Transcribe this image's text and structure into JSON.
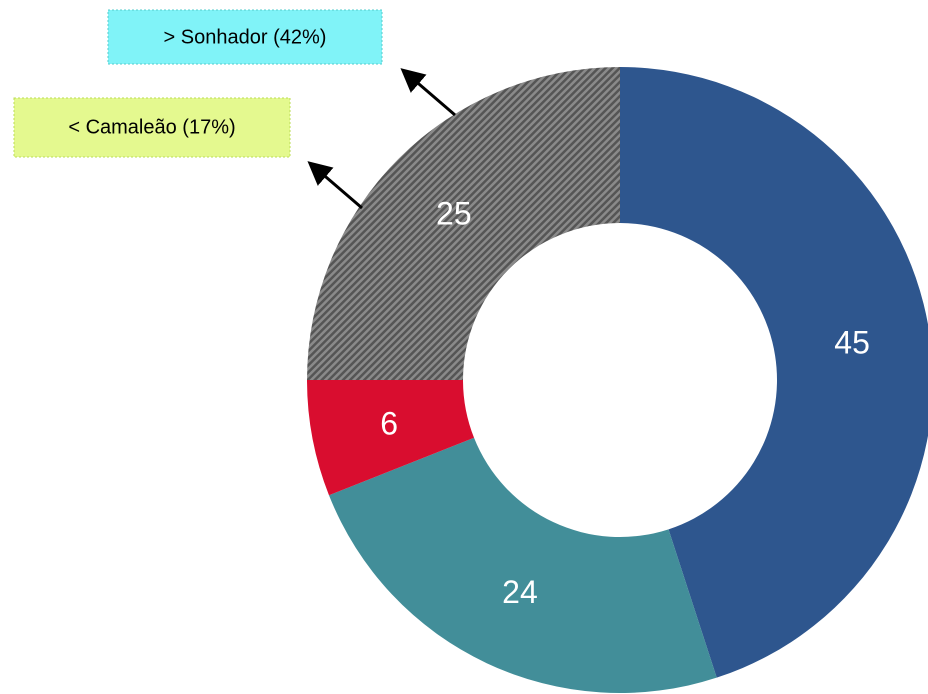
{
  "chart_data": {
    "type": "donut",
    "values": [
      45,
      24,
      6,
      25
    ],
    "colors": [
      "#2e568e",
      "#428e99",
      "#d90d2f",
      "#6e6e6e"
    ],
    "hatch": [
      false,
      false,
      false,
      true
    ],
    "annotations": [
      {
        "text": "> Sonhador (42%)",
        "color": "#80f3f8"
      },
      {
        "text": "< Camaleão (17%)",
        "color": "#e4f98f"
      }
    ]
  }
}
